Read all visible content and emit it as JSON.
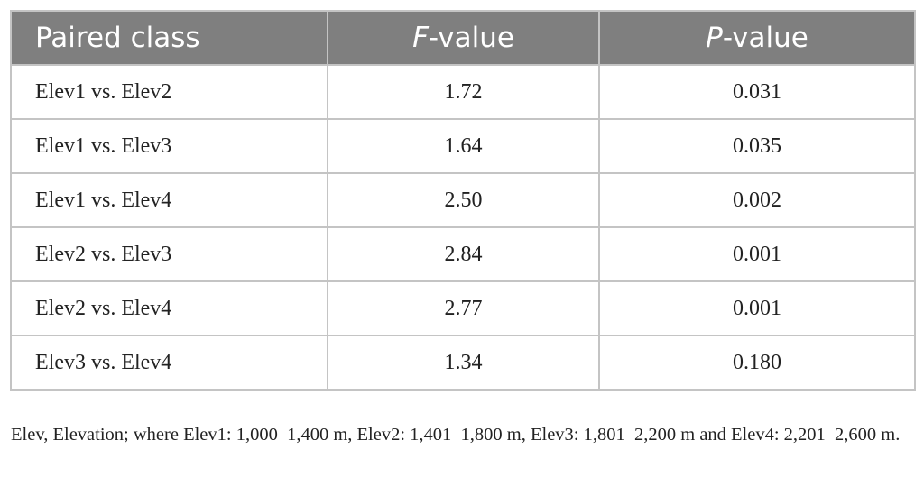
{
  "table": {
    "header": [
      "Paired class",
      "F-value",
      "P-value"
    ],
    "rows": [
      [
        "Elev1 vs. Elev2",
        "1.72",
        "0.031"
      ],
      [
        "Elev1 vs. Elev3",
        "1.64",
        "0.035"
      ],
      [
        "Elev1 vs. Elev4",
        "2.50",
        "0.002"
      ],
      [
        "Elev2 vs. Elev3",
        "2.84",
        "0.001"
      ],
      [
        "Elev2 vs. Elev4",
        "2.77",
        "0.001"
      ],
      [
        "Elev3 vs. Elev4",
        "1.34",
        "0.180"
      ]
    ],
    "footnote": "Elev, Elevation; where Elev1: 1,000–1,400 m, Elev2: 1,401–1,800 m, Elev3: 1,801–2,200 m and Elev4: 2,201–2,600 m."
  }
}
